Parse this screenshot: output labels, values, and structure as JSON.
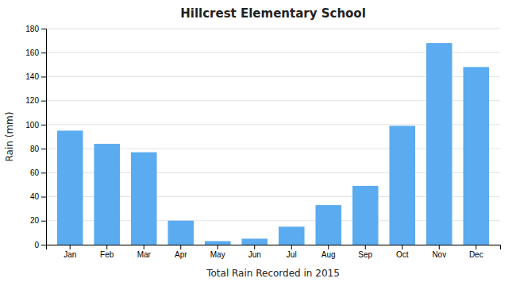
{
  "chart_data": {
    "type": "bar",
    "title": "Hillcrest Elementary School",
    "xlabel": "Total Rain Recorded in 2015",
    "ylabel": "Rain (mm)",
    "categories": [
      "Jan",
      "Feb",
      "Mar",
      "Apr",
      "May",
      "Jun",
      "Jul",
      "Aug",
      "Sep",
      "Oct",
      "Nov",
      "Dec"
    ],
    "values": [
      95,
      84,
      77,
      20,
      3,
      5,
      15,
      33,
      49,
      99,
      168,
      148
    ],
    "color": "#5aabf0",
    "ylim": [
      0,
      180
    ],
    "yticks": [
      0,
      20,
      40,
      60,
      80,
      100,
      120,
      140,
      160,
      180
    ],
    "grid": true
  }
}
